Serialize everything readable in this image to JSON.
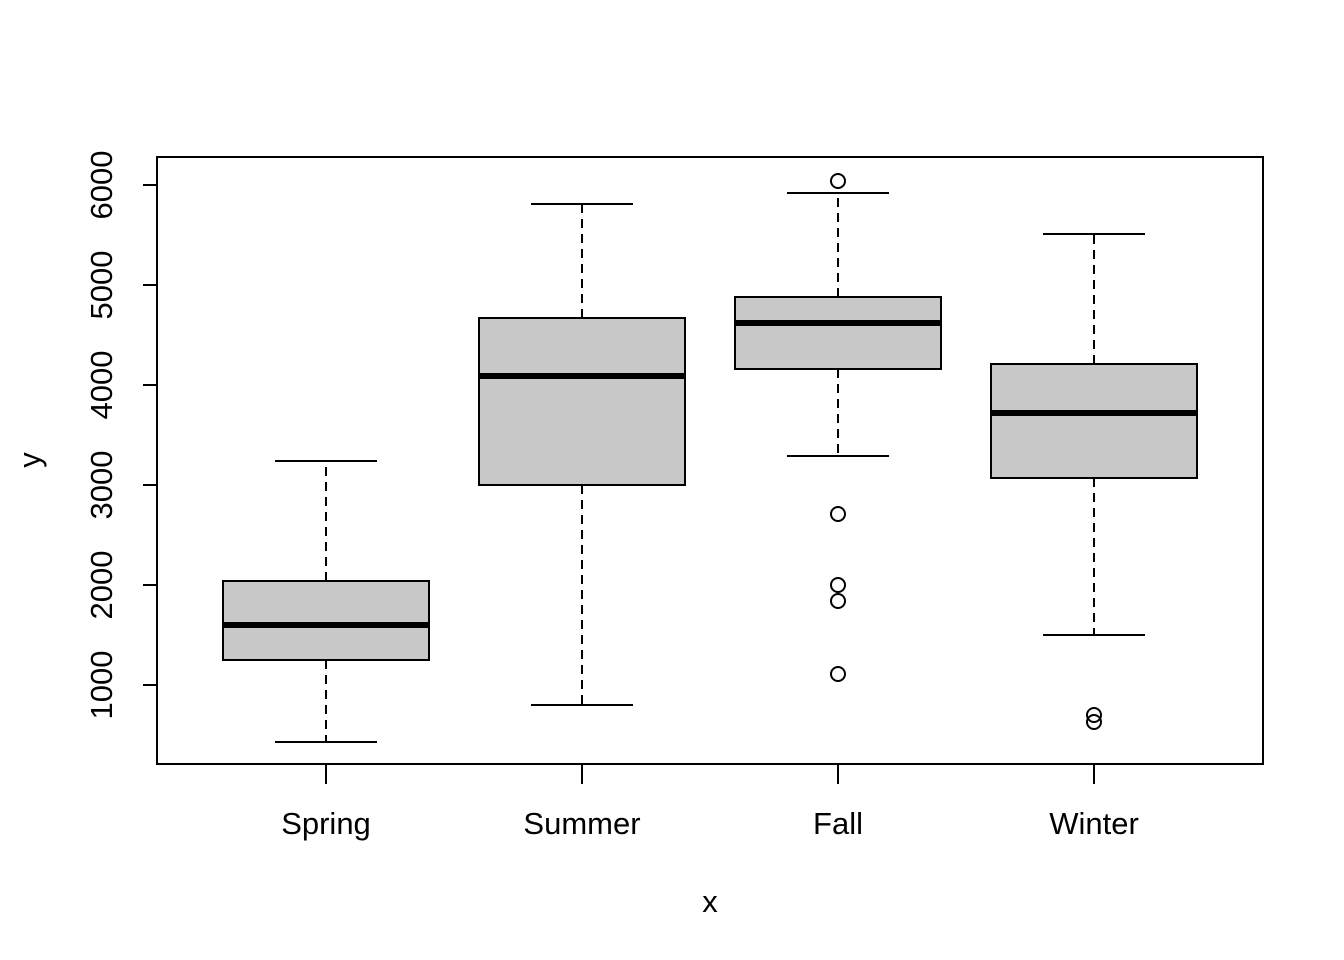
{
  "chart_data": {
    "type": "boxplot",
    "title": "",
    "xlabel": "x",
    "ylabel": "y",
    "ylim": [
      430,
      6040
    ],
    "yticks": [
      1000,
      2000,
      3000,
      4000,
      5000,
      6000
    ],
    "grid": false,
    "categories": [
      "Spring",
      "Summer",
      "Fall",
      "Winter"
    ],
    "boxes": [
      {
        "category": "Spring",
        "whisker_low": 430,
        "q1": 1250,
        "median": 1600,
        "q3": 2040,
        "whisker_high": 3240,
        "outliers": []
      },
      {
        "category": "Summer",
        "whisker_low": 800,
        "q1": 3000,
        "median": 4090,
        "q3": 4670,
        "whisker_high": 5810,
        "outliers": []
      },
      {
        "category": "Fall",
        "whisker_low": 3290,
        "q1": 4160,
        "median": 4620,
        "q3": 4880,
        "whisker_high": 5920,
        "outliers": [
          6040,
          2710,
          2000,
          1840,
          1110
        ]
      },
      {
        "category": "Winter",
        "whisker_low": 1500,
        "q1": 3070,
        "median": 3720,
        "q3": 4210,
        "whisker_high": 5510,
        "outliers": [
          700,
          630
        ]
      }
    ],
    "colors": {
      "box_fill": "#c8c8c8",
      "line": "#000000"
    }
  }
}
